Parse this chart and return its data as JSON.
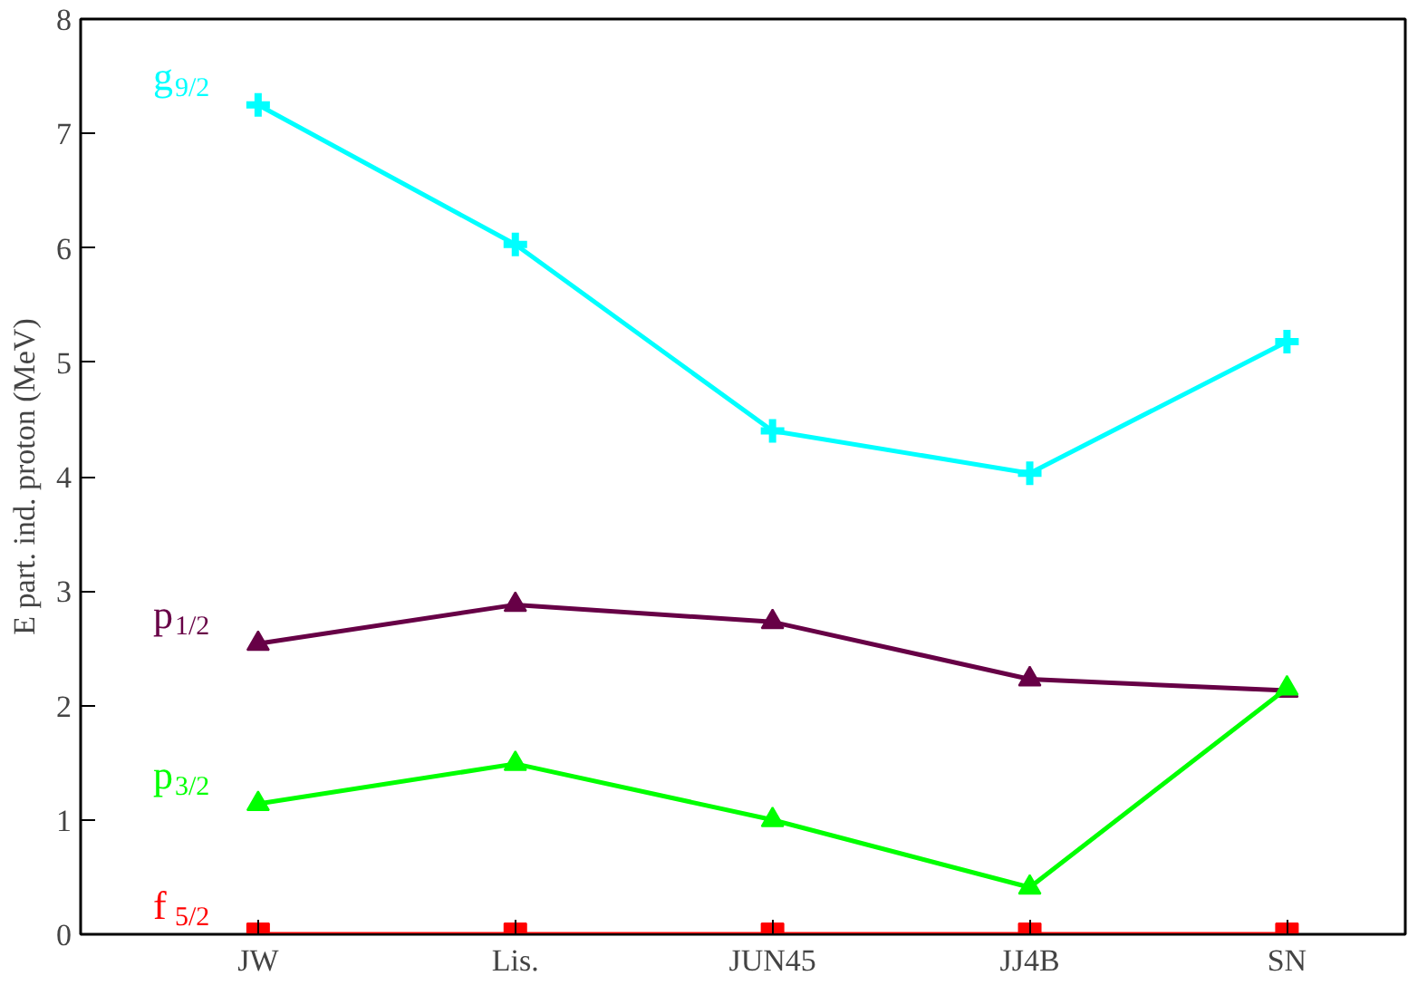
{
  "chart_data": {
    "type": "line",
    "ylabel": "E part. ind. proton (MeV)",
    "categories": [
      "JW",
      "Lis.",
      "JUN45",
      "JJ4B",
      "SN"
    ],
    "ylim": [
      0,
      8
    ],
    "yticks": [
      0,
      1,
      2,
      3,
      4,
      5,
      6,
      7,
      8
    ],
    "grid": false,
    "line_style": "solid",
    "series": [
      {
        "name": "g$_{9/2}$",
        "color": "#00ffff",
        "marker": "cross",
        "values": [
          7.25,
          6.03,
          4.4,
          4.03,
          5.18
        ]
      },
      {
        "name": "p$_{1/2}$",
        "color": "#670046",
        "marker": "triangle",
        "values": [
          2.54,
          2.88,
          2.73,
          2.23,
          2.13
        ]
      },
      {
        "name": "p$_{3/2}$",
        "color": "#00ff00",
        "marker": "triangle",
        "values": [
          1.14,
          1.49,
          1.0,
          0.41,
          2.15
        ]
      },
      {
        "name": "f$_{5/2}$",
        "color": "#ff0000",
        "marker": "square",
        "values": [
          0,
          0,
          0,
          0,
          0
        ]
      }
    ]
  }
}
